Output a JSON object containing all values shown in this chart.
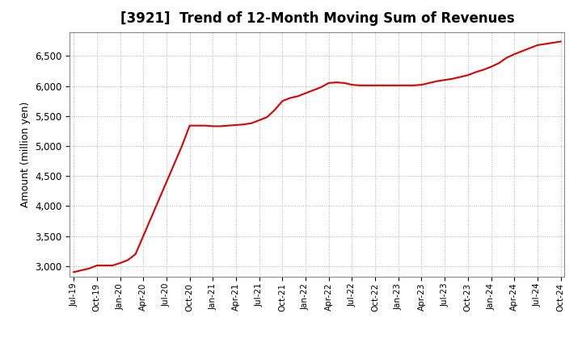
{
  "title": "[3921]  Trend of 12-Month Moving Sum of Revenues",
  "ylabel": "Amount (million yen)",
  "line_color": "#dd0000",
  "background_color": "#ffffff",
  "plot_bg_color": "#ffffff",
  "grid_color": "#b0b0b0",
  "ylim": [
    2820,
    6900
  ],
  "yticks": [
    3000,
    3500,
    4000,
    4500,
    5000,
    5500,
    6000,
    6500
  ],
  "values": [
    2900,
    2930,
    2960,
    3010,
    3010,
    3010,
    3050,
    3100,
    3200,
    3500,
    3800,
    4100,
    4400,
    4700,
    5000,
    5340,
    5340,
    5340,
    5330,
    5330,
    5340,
    5350,
    5360,
    5380,
    5430,
    5480,
    5600,
    5750,
    5800,
    5830,
    5880,
    5930,
    5980,
    6050,
    6060,
    6050,
    6020,
    6010,
    6010,
    6010,
    6010,
    6010,
    6010,
    6010,
    6010,
    6020,
    6050,
    6080,
    6100,
    6120,
    6150,
    6180,
    6230,
    6270,
    6320,
    6380,
    6470,
    6530,
    6580,
    6630,
    6680,
    6700,
    6720,
    6740
  ],
  "xtick_labels": [
    "Jul-19",
    "Oct-19",
    "Jan-20",
    "Apr-20",
    "Jul-20",
    "Oct-20",
    "Jan-21",
    "Apr-21",
    "Jul-21",
    "Oct-21",
    "Jan-22",
    "Apr-22",
    "Jul-22",
    "Oct-22",
    "Jan-23",
    "Apr-23",
    "Jul-23",
    "Oct-23",
    "Jan-24",
    "Apr-24",
    "Jul-24",
    "Oct-24"
  ],
  "xtick_positions": [
    0,
    3,
    6,
    9,
    12,
    15,
    18,
    21,
    24,
    27,
    30,
    33,
    36,
    39,
    42,
    45,
    48,
    51,
    54,
    57,
    60,
    63
  ],
  "title_fontsize": 12,
  "ylabel_fontsize": 9,
  "tick_fontsize": 8.5,
  "xtick_fontsize": 7.5,
  "linewidth": 1.5
}
